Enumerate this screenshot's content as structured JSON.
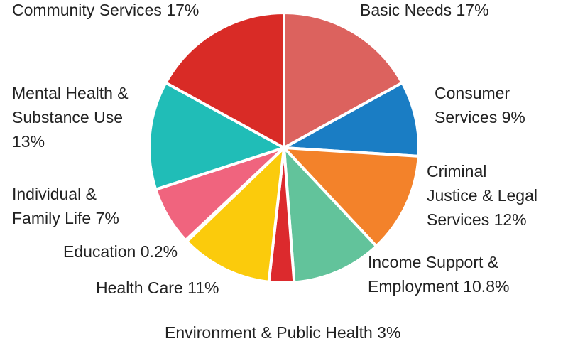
{
  "chart_data": {
    "type": "pie",
    "title": "",
    "start": "top",
    "direction": "clockwise",
    "slices": [
      {
        "label_lines": [
          "Basic Needs 17%"
        ],
        "category": "Basic Needs",
        "value": 17,
        "color": "#dc625e"
      },
      {
        "label_lines": [
          "Consumer",
          "Services 9%"
        ],
        "category": "Consumer Services",
        "value": 9,
        "color": "#1a7dc4"
      },
      {
        "label_lines": [
          "Criminal",
          "Justice & Legal",
          "Services 12%"
        ],
        "category": "Criminal Justice & Legal Services",
        "value": 12,
        "color": "#f3822a"
      },
      {
        "label_lines": [
          "Income Support &",
          "Employment 10.8%"
        ],
        "category": "Income Support & Employment",
        "value": 10.8,
        "color": "#62c39b"
      },
      {
        "label_lines": [
          "Environment & Public Health 3%"
        ],
        "category": "Environment & Public Health",
        "value": 3,
        "color": "#dc2a2d"
      },
      {
        "label_lines": [
          "Health Care 11%"
        ],
        "category": "Health Care",
        "value": 11,
        "color": "#fbcb0c"
      },
      {
        "label_lines": [
          "Education 0.2%"
        ],
        "category": "Education",
        "value": 0.2,
        "color": "#5a1d12"
      },
      {
        "label_lines": [
          "Individual &",
          "Family Life 7%"
        ],
        "category": "Individual & Family Life",
        "value": 7,
        "color": "#f0647e"
      },
      {
        "label_lines": [
          "Mental Health &",
          "Substance Use",
          "13%"
        ],
        "category": "Mental Health & Substance Use",
        "value": 13,
        "color": "#20bdb7"
      },
      {
        "label_lines": [
          "Community Services 17%"
        ],
        "category": "Community Services",
        "value": 17,
        "color": "#d92b26"
      }
    ]
  }
}
